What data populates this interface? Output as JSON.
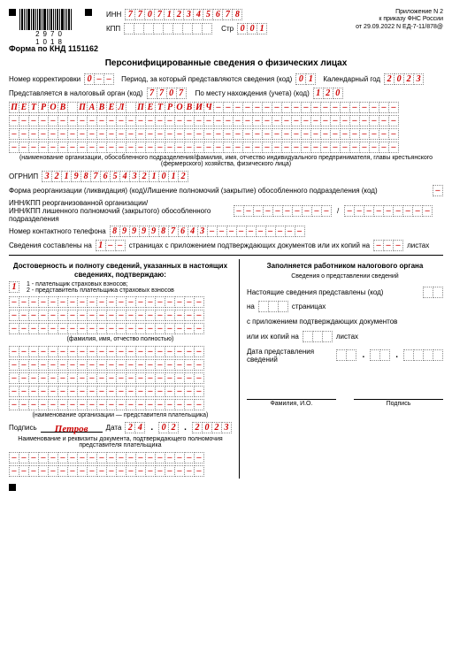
{
  "barcode_num": "2970 1018",
  "inn_label": "ИНН",
  "inn": [
    "7",
    "7",
    "0",
    "7",
    "1",
    "2",
    "3",
    "4",
    "5",
    "6",
    "7",
    "8"
  ],
  "kpp_label": "КПП",
  "kpp": [
    "",
    "",
    "",
    "",
    "",
    "",
    "",
    "",
    ""
  ],
  "str_label": "Стр",
  "str": [
    "0",
    "0",
    "1"
  ],
  "appendix": "Приложение N 2",
  "order1": "к приказу ФНС России",
  "order2": "от 29.09.2022 N ЕД-7-11/878@",
  "form_code": "Форма по КНД 1151162",
  "title": "Персонифицированные сведения о физических лицах",
  "corr_label": "Номер корректировки",
  "corr": [
    "0",
    "–",
    "–"
  ],
  "period_label": "Период, за который представляются сведения (код)",
  "period": [
    "0",
    "1"
  ],
  "year_label": "Календарный год",
  "year": [
    "2",
    "0",
    "2",
    "3"
  ],
  "tax_org_label": "Представляется в налоговый орган (код)",
  "tax_org": [
    "7",
    "7",
    "0",
    "7"
  ],
  "location_label": "По месту нахождения (учета) (код)",
  "location": [
    "1",
    "2",
    "0"
  ],
  "name_rows": [
    [
      "П",
      "Е",
      "Т",
      "Р",
      "О",
      "В",
      "",
      "П",
      "А",
      "В",
      "Е",
      "Л",
      "",
      "П",
      "Е",
      "Т",
      "Р",
      "О",
      "В",
      "И",
      "Ч",
      "–",
      "–",
      "–",
      "–",
      "–",
      "–",
      "–",
      "–",
      "–",
      "–",
      "–",
      "–",
      "–",
      "–",
      "–",
      "–",
      "–",
      "–",
      "–"
    ],
    [
      "–",
      "–",
      "–",
      "–",
      "–",
      "–",
      "–",
      "–",
      "–",
      "–",
      "–",
      "–",
      "–",
      "–",
      "–",
      "–",
      "–",
      "–",
      "–",
      "–",
      "–",
      "–",
      "–",
      "–",
      "–",
      "–",
      "–",
      "–",
      "–",
      "–",
      "–",
      "–",
      "–",
      "–",
      "–",
      "–",
      "–",
      "–",
      "–",
      "–"
    ],
    [
      "–",
      "–",
      "–",
      "–",
      "–",
      "–",
      "–",
      "–",
      "–",
      "–",
      "–",
      "–",
      "–",
      "–",
      "–",
      "–",
      "–",
      "–",
      "–",
      "–",
      "–",
      "–",
      "–",
      "–",
      "–",
      "–",
      "–",
      "–",
      "–",
      "–",
      "–",
      "–",
      "–",
      "–",
      "–",
      "–",
      "–",
      "–",
      "–",
      "–"
    ],
    [
      "–",
      "–",
      "–",
      "–",
      "–",
      "–",
      "–",
      "–",
      "–",
      "–",
      "–",
      "–",
      "–",
      "–",
      "–",
      "–",
      "–",
      "–",
      "–",
      "–",
      "–",
      "–",
      "–",
      "–",
      "–",
      "–",
      "–",
      "–",
      "–",
      "–",
      "–",
      "–",
      "–",
      "–",
      "–",
      "–",
      "–",
      "–",
      "–",
      "–"
    ]
  ],
  "name_caption": "(наименование организации, обособленного подразделения/фамилия, имя, отчество индивидуального предпринимателя, главы крестьянского (фермерского) хозяйства, физического лица)",
  "ogrnip_label": "ОГРНИП",
  "ogrnip": [
    "3",
    "2",
    "1",
    "9",
    "8",
    "7",
    "6",
    "5",
    "4",
    "3",
    "2",
    "1",
    "0",
    "1",
    "2"
  ],
  "reorg_label": "Форма реорганизации (ликвидация) (код)/Лишение полномочий (закрытие) обособленного подразделения (код)",
  "reorg": [
    "–"
  ],
  "inn_kpp_reorg_label": "ИНН/КПП реорганизованной организации/\nИНН/КПП лишенного полномочий (закрытого) обособленного подразделения",
  "inn_reorg": [
    "–",
    "–",
    "–",
    "–",
    "–",
    "–",
    "–",
    "–",
    "–",
    "–"
  ],
  "kpp_reorg": [
    "–",
    "–",
    "–",
    "–",
    "–",
    "–",
    "–",
    "–",
    "–"
  ],
  "phone_label": "Номер контактного телефона",
  "phone": [
    "8",
    "9",
    "9",
    "9",
    "9",
    "8",
    "7",
    "6",
    "4",
    "3",
    "–",
    "–",
    "–",
    "–",
    "–",
    "–",
    "–",
    "–",
    "–",
    "–"
  ],
  "pages_label1": "Сведения составлены на",
  "pages": [
    "1",
    "–",
    "–"
  ],
  "pages_label2": "страницах с приложением подтверждающих документов или их копий на",
  "sheets": [
    "–",
    "–",
    "–"
  ],
  "sheets_label": "листах",
  "left_title": "Достоверность и полноту сведений, указанных в настоящих сведениях, подтверждаю:",
  "confirm_code": [
    "1"
  ],
  "confirm_legend": "1 - плательщик страховых взносов;\n2 - представитель плательщика страховых взносов",
  "fio_rows": 3,
  "fio_caption": "(фамилия, имя, отчество полностью)",
  "org_rows": 5,
  "org_caption": "(наименование организации — представителя плательщика)",
  "sign_label": "Подпись",
  "signature": "Петров",
  "date_label": "Дата",
  "date_d": [
    "2",
    "4"
  ],
  "date_m": [
    "0",
    "2"
  ],
  "date_y": [
    "2",
    "0",
    "2",
    "3"
  ],
  "doc_label": "Наименование и реквизиты документа, подтверждающего полномочия представителя плательщика",
  "doc_rows": 2,
  "right_title": "Заполняется работником налогового органа",
  "right_subtitle": "Сведения о представлении сведений",
  "r1": "Настоящие сведения представлены (код)",
  "r2a": "на",
  "r2b": "страницах",
  "r3": "с приложением подтверждающих документов",
  "r4a": "или их копий на",
  "r4b": "листах",
  "r5": "Дата представления сведений",
  "r_fio": "Фамилия, И.О.",
  "r_sign": "Подпись"
}
